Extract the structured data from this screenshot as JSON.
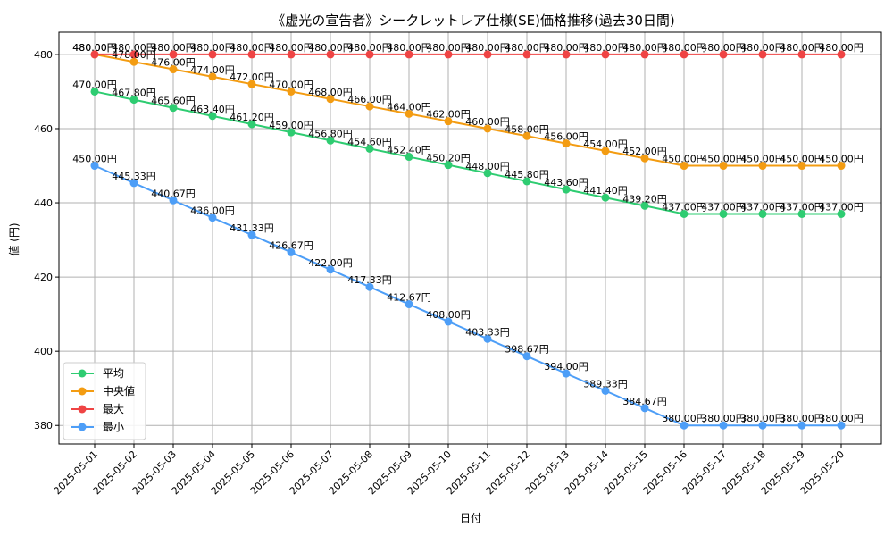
{
  "chart_data": {
    "type": "line",
    "title": "《虚光の宣告者》シークレットレア仕様(SE)価格推移(過去30日間)",
    "xlabel": "日付",
    "ylabel": "値 (円)",
    "ylim": [
      375,
      486
    ],
    "yticks": [
      380,
      400,
      420,
      440,
      460,
      480
    ],
    "grid": true,
    "legend_position": "lower-left",
    "label_suffix": "円",
    "categories": [
      "2025-05-01",
      "2025-05-02",
      "2025-05-03",
      "2025-05-04",
      "2025-05-05",
      "2025-05-06",
      "2025-05-07",
      "2025-05-08",
      "2025-05-09",
      "2025-05-10",
      "2025-05-11",
      "2025-05-12",
      "2025-05-13",
      "2025-05-14",
      "2025-05-15",
      "2025-05-16",
      "2025-05-17",
      "2025-05-18",
      "2025-05-19",
      "2025-05-20"
    ],
    "series": [
      {
        "name": "平均",
        "color": "#2ecc71",
        "values": [
          470.0,
          467.8,
          465.6,
          463.4,
          461.2,
          459.0,
          456.8,
          454.6,
          452.4,
          450.2,
          448.0,
          445.8,
          443.6,
          441.4,
          439.2,
          437.0,
          437.0,
          437.0,
          437.0,
          437.0
        ]
      },
      {
        "name": "中央値",
        "color": "#f39c12",
        "values": [
          480.0,
          478.0,
          476.0,
          474.0,
          472.0,
          470.0,
          468.0,
          466.0,
          464.0,
          462.0,
          460.0,
          458.0,
          456.0,
          454.0,
          452.0,
          450.0,
          450.0,
          450.0,
          450.0,
          450.0
        ]
      },
      {
        "name": "最大",
        "color": "#ef4444",
        "values": [
          480.0,
          480.0,
          480.0,
          480.0,
          480.0,
          480.0,
          480.0,
          480.0,
          480.0,
          480.0,
          480.0,
          480.0,
          480.0,
          480.0,
          480.0,
          480.0,
          480.0,
          480.0,
          480.0,
          480.0
        ]
      },
      {
        "name": "最小",
        "color": "#4d9ef7",
        "values": [
          450.0,
          445.33,
          440.67,
          436.0,
          431.33,
          426.67,
          422.0,
          417.33,
          412.67,
          408.0,
          403.33,
          398.67,
          394.0,
          389.33,
          384.67,
          380.0,
          380.0,
          380.0,
          380.0,
          380.0
        ]
      }
    ]
  }
}
